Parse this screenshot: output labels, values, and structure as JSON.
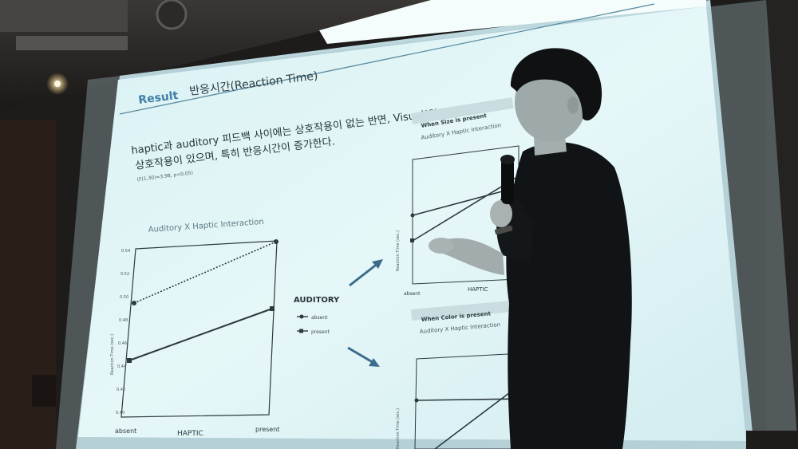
{
  "slide": {
    "header_label": "Result",
    "header_title": "반응시간(Reaction Time)",
    "header_suffix": "반면, Visual(Size, Color)이",
    "body_line1": "haptic과 auditory 피드백 사이에는 상호작용이 없는 반면, Visual(Size, Color)이",
    "body_line2": "상호작용이 있으며, 특히 반응시간이 증가한다.",
    "stat_note": "(F(1,30)=3.98, p<0.05)"
  },
  "main_chart": {
    "title": "Auditory X Haptic Interaction",
    "y_axis_label": "Reaction Time (sec.)",
    "y_ticks": [
      "0.54",
      "0.52",
      "0.50",
      "0.48",
      "0.46",
      "0.44",
      "0.42",
      "0.40"
    ],
    "x_axis_label": "HAPTIC",
    "x_ticks": [
      "absent",
      "present"
    ],
    "legend": {
      "title": "AUDITORY",
      "items": [
        "absent",
        "present"
      ]
    }
  },
  "side_chart_top": {
    "label": "When Size is present",
    "title": "Auditory X Haptic Interaction",
    "y_axis_label": "Reaction Time (sec.)",
    "x_axis_label": "HAPTIC",
    "x_tick": "absent"
  },
  "side_chart_bottom": {
    "label": "When Color is present",
    "title": "Auditory X Haptic Interaction",
    "y_axis_label": "Reaction Time (sec.)"
  },
  "colors": {
    "slide_bg": "#e4f6f7",
    "slide_accent": "#3f7fa8",
    "ink": "#2c3a40"
  },
  "icons": [
    "microphone-icon",
    "arrow-icon"
  ]
}
